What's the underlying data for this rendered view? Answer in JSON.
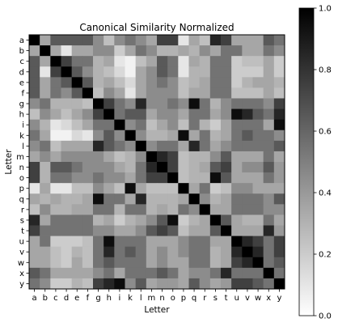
{
  "chart_data": {
    "type": "heatmap",
    "title": "Canonical Similarity Normalized",
    "xlabel": "Letter",
    "ylabel": "Letter",
    "labels": [
      "a",
      "b",
      "c",
      "d",
      "e",
      "f",
      "g",
      "h",
      "i",
      "k",
      "l",
      "m",
      "n",
      "o",
      "p",
      "q",
      "r",
      "s",
      "t",
      "u",
      "v",
      "w",
      "x",
      "y"
    ],
    "colormap": "gray_r",
    "vmin": 0.0,
    "vmax": 1.0,
    "colorbar_ticks": [
      "0.0",
      "0.2",
      "0.4",
      "0.6",
      "0.8",
      "1.0"
    ],
    "colorbar_tick_values": [
      0.0,
      0.2,
      0.4,
      0.6,
      0.8,
      1.0
    ],
    "values": [
      [
        1.0,
        0.35,
        0.65,
        0.65,
        0.65,
        0.65,
        0.45,
        0.25,
        0.45,
        0.55,
        0.45,
        0.35,
        0.75,
        0.75,
        0.1,
        0.35,
        0.25,
        0.85,
        0.75,
        0.35,
        0.35,
        0.35,
        0.65,
        0.55
      ],
      [
        0.35,
        1.0,
        0.35,
        0.1,
        0.35,
        0.35,
        0.45,
        0.45,
        0.2,
        0.35,
        0.55,
        0.45,
        0.3,
        0.3,
        0.35,
        0.3,
        0.45,
        0.35,
        0.55,
        0.55,
        0.35,
        0.35,
        0.55,
        0.45
      ],
      [
        0.65,
        0.35,
        1.0,
        0.75,
        0.55,
        0.55,
        0.3,
        0.35,
        0.1,
        0.05,
        0.25,
        0.35,
        0.65,
        0.55,
        0.1,
        0.35,
        0.3,
        0.55,
        0.55,
        0.2,
        0.25,
        0.25,
        0.35,
        0.2
      ],
      [
        0.65,
        0.1,
        0.75,
        1.0,
        0.65,
        0.45,
        0.3,
        0.25,
        0.15,
        0.05,
        0.35,
        0.45,
        0.65,
        0.55,
        0.1,
        0.3,
        0.3,
        0.55,
        0.55,
        0.2,
        0.2,
        0.2,
        0.35,
        0.2
      ],
      [
        0.65,
        0.35,
        0.55,
        0.65,
        1.0,
        0.65,
        0.3,
        0.35,
        0.25,
        0.15,
        0.35,
        0.45,
        0.55,
        0.45,
        0.25,
        0.3,
        0.35,
        0.55,
        0.55,
        0.2,
        0.3,
        0.35,
        0.35,
        0.3
      ],
      [
        0.65,
        0.35,
        0.55,
        0.45,
        0.65,
        1.0,
        0.25,
        0.45,
        0.35,
        0.1,
        0.35,
        0.45,
        0.45,
        0.45,
        0.25,
        0.35,
        0.35,
        0.55,
        0.55,
        0.25,
        0.25,
        0.25,
        0.35,
        0.25
      ],
      [
        0.45,
        0.55,
        0.3,
        0.3,
        0.3,
        0.25,
        1.0,
        0.75,
        0.55,
        0.45,
        0.85,
        0.45,
        0.45,
        0.55,
        0.45,
        0.95,
        0.55,
        0.3,
        0.45,
        0.55,
        0.55,
        0.55,
        0.45,
        0.75
      ],
      [
        0.25,
        0.45,
        0.35,
        0.25,
        0.35,
        0.45,
        0.75,
        1.0,
        0.55,
        0.65,
        0.65,
        0.35,
        0.45,
        0.45,
        0.35,
        0.55,
        0.55,
        0.35,
        0.45,
        0.95,
        0.85,
        0.65,
        0.55,
        0.85
      ],
      [
        0.45,
        0.3,
        0.1,
        0.15,
        0.25,
        0.35,
        0.55,
        0.55,
        1.0,
        0.45,
        0.55,
        0.25,
        0.35,
        0.45,
        0.25,
        0.55,
        0.3,
        0.2,
        0.35,
        0.55,
        0.55,
        0.55,
        0.35,
        0.95
      ],
      [
        0.55,
        0.35,
        0.05,
        0.05,
        0.15,
        0.1,
        0.45,
        0.65,
        0.45,
        1.0,
        0.45,
        0.3,
        0.3,
        0.35,
        0.95,
        0.35,
        0.55,
        0.3,
        0.35,
        0.55,
        0.65,
        0.55,
        0.55,
        0.45
      ],
      [
        0.45,
        0.55,
        0.25,
        0.35,
        0.35,
        0.35,
        0.85,
        0.65,
        0.55,
        0.45,
        1.0,
        0.45,
        0.55,
        0.55,
        0.35,
        0.85,
        0.55,
        0.35,
        0.45,
        0.55,
        0.55,
        0.55,
        0.55,
        0.65
      ],
      [
        0.35,
        0.45,
        0.35,
        0.45,
        0.45,
        0.45,
        0.45,
        0.35,
        0.25,
        0.3,
        0.45,
        1.0,
        0.85,
        0.75,
        0.25,
        0.3,
        0.3,
        0.45,
        0.65,
        0.35,
        0.35,
        0.35,
        0.55,
        0.35
      ],
      [
        0.75,
        0.3,
        0.65,
        0.65,
        0.55,
        0.45,
        0.45,
        0.45,
        0.35,
        0.3,
        0.55,
        0.85,
        1.0,
        0.75,
        0.25,
        0.3,
        0.35,
        0.65,
        0.75,
        0.35,
        0.45,
        0.45,
        0.65,
        0.4
      ],
      [
        0.75,
        0.3,
        0.55,
        0.55,
        0.45,
        0.45,
        0.55,
        0.45,
        0.45,
        0.35,
        0.55,
        0.75,
        0.75,
        1.0,
        0.25,
        0.3,
        0.3,
        0.95,
        0.65,
        0.35,
        0.35,
        0.35,
        0.55,
        0.4
      ],
      [
        0.1,
        0.35,
        0.1,
        0.1,
        0.25,
        0.25,
        0.45,
        0.35,
        0.25,
        0.95,
        0.35,
        0.25,
        0.25,
        0.25,
        1.0,
        0.35,
        0.55,
        0.2,
        0.25,
        0.45,
        0.45,
        0.35,
        0.35,
        0.35
      ],
      [
        0.35,
        0.3,
        0.35,
        0.3,
        0.3,
        0.35,
        0.95,
        0.55,
        0.55,
        0.35,
        0.85,
        0.3,
        0.3,
        0.3,
        0.35,
        1.0,
        0.45,
        0.3,
        0.35,
        0.55,
        0.55,
        0.55,
        0.45,
        0.65
      ],
      [
        0.25,
        0.45,
        0.3,
        0.3,
        0.35,
        0.35,
        0.55,
        0.55,
        0.3,
        0.55,
        0.55,
        0.3,
        0.35,
        0.3,
        0.55,
        0.45,
        1.0,
        0.35,
        0.35,
        0.55,
        0.55,
        0.55,
        0.45,
        0.45
      ],
      [
        0.85,
        0.35,
        0.55,
        0.55,
        0.55,
        0.55,
        0.3,
        0.35,
        0.2,
        0.3,
        0.35,
        0.45,
        0.65,
        0.95,
        0.2,
        0.3,
        0.35,
        1.0,
        0.65,
        0.35,
        0.3,
        0.3,
        0.55,
        0.35
      ],
      [
        0.75,
        0.55,
        0.55,
        0.55,
        0.55,
        0.55,
        0.45,
        0.45,
        0.35,
        0.35,
        0.45,
        0.65,
        0.75,
        0.65,
        0.25,
        0.35,
        0.35,
        0.65,
        1.0,
        0.35,
        0.35,
        0.35,
        0.85,
        0.4
      ],
      [
        0.35,
        0.55,
        0.2,
        0.2,
        0.2,
        0.25,
        0.55,
        0.95,
        0.55,
        0.55,
        0.55,
        0.35,
        0.35,
        0.35,
        0.45,
        0.55,
        0.55,
        0.35,
        0.35,
        1.0,
        0.85,
        0.75,
        0.55,
        0.75
      ],
      [
        0.35,
        0.35,
        0.25,
        0.2,
        0.3,
        0.25,
        0.55,
        0.85,
        0.55,
        0.65,
        0.55,
        0.35,
        0.45,
        0.35,
        0.45,
        0.55,
        0.55,
        0.3,
        0.35,
        0.85,
        1.0,
        0.85,
        0.55,
        0.75
      ],
      [
        0.35,
        0.35,
        0.25,
        0.2,
        0.35,
        0.25,
        0.55,
        0.65,
        0.55,
        0.55,
        0.55,
        0.35,
        0.45,
        0.35,
        0.35,
        0.55,
        0.55,
        0.3,
        0.35,
        0.75,
        0.85,
        1.0,
        0.55,
        0.65
      ],
      [
        0.65,
        0.55,
        0.35,
        0.35,
        0.35,
        0.35,
        0.45,
        0.55,
        0.35,
        0.55,
        0.55,
        0.55,
        0.65,
        0.55,
        0.35,
        0.45,
        0.45,
        0.55,
        0.85,
        0.55,
        0.55,
        0.55,
        1.0,
        0.55
      ],
      [
        0.55,
        0.45,
        0.2,
        0.2,
        0.3,
        0.25,
        0.75,
        0.85,
        0.95,
        0.45,
        0.65,
        0.35,
        0.4,
        0.4,
        0.35,
        0.65,
        0.45,
        0.35,
        0.4,
        0.75,
        0.75,
        0.65,
        0.55,
        1.0
      ]
    ]
  }
}
